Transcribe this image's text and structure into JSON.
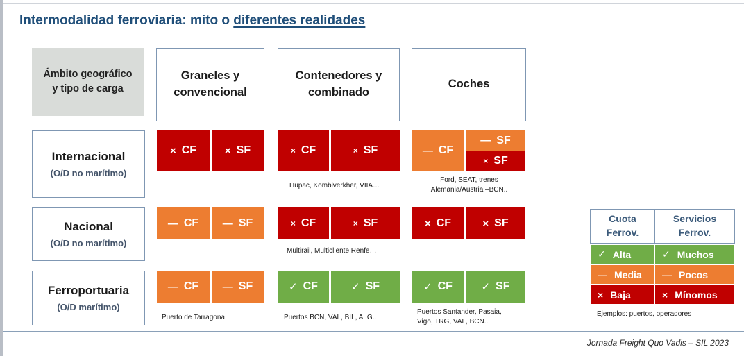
{
  "title": {
    "part1": "Intermodalidad ferroviaria:  mito o ",
    "part2": "diferentes realidades"
  },
  "corner": {
    "line1": "Ámbito geográfico",
    "line2": "y tipo de carga"
  },
  "columns": [
    {
      "line1": "Graneles  y",
      "line2": "convencional"
    },
    {
      "line1": "Contenedores y",
      "line2": "combinado"
    },
    {
      "line1": "Coches",
      "line2": ""
    }
  ],
  "rows": [
    {
      "name": "Internacional",
      "sub": "(O/D no marítimo)"
    },
    {
      "name": "Nacional",
      "sub": "(O/D no marítimo)"
    },
    {
      "name": "Ferroportuaria",
      "sub": "(O/D marítimo)"
    }
  ],
  "symbols": {
    "cross": "×",
    "dash": "—",
    "check": "✓"
  },
  "labels": {
    "cf": "CF",
    "sf": "SF"
  },
  "status_colors": {
    "red": "#c00000",
    "orange": "#ed7d31",
    "green": "#70ad47"
  },
  "notes": {
    "intl_containers": "Hupac, Kombiverkher, VIIA…",
    "intl_cars_1": "Ford, SEAT, trenes",
    "intl_cars_2": "Alemania/Austria –BCN..",
    "nac_containers": "Multirail, Multicliente Renfe…",
    "port_bulk": "Puerto de Tarragona",
    "port_containers": "Puertos BCN, VAL, BIL, ALG..",
    "port_cars_1": "Puertos Santander, Pasaia,",
    "port_cars_2": "Vigo, TRG, VAL, BCN.."
  },
  "legend": {
    "head_left": {
      "line1": "Cuota",
      "line2": "Ferrov."
    },
    "head_right": {
      "line1": "Servicios",
      "line2": "Ferrov."
    },
    "rows": [
      {
        "left": "Alta",
        "right": "Muchos"
      },
      {
        "left": "Media",
        "right": "Pocos"
      },
      {
        "left": "Baja",
        "right": "Mínomos"
      }
    ],
    "example": "Ejemplos: puertos, operadores"
  },
  "footer": "Jornada Freight Quo Vadis – SIL 2023"
}
